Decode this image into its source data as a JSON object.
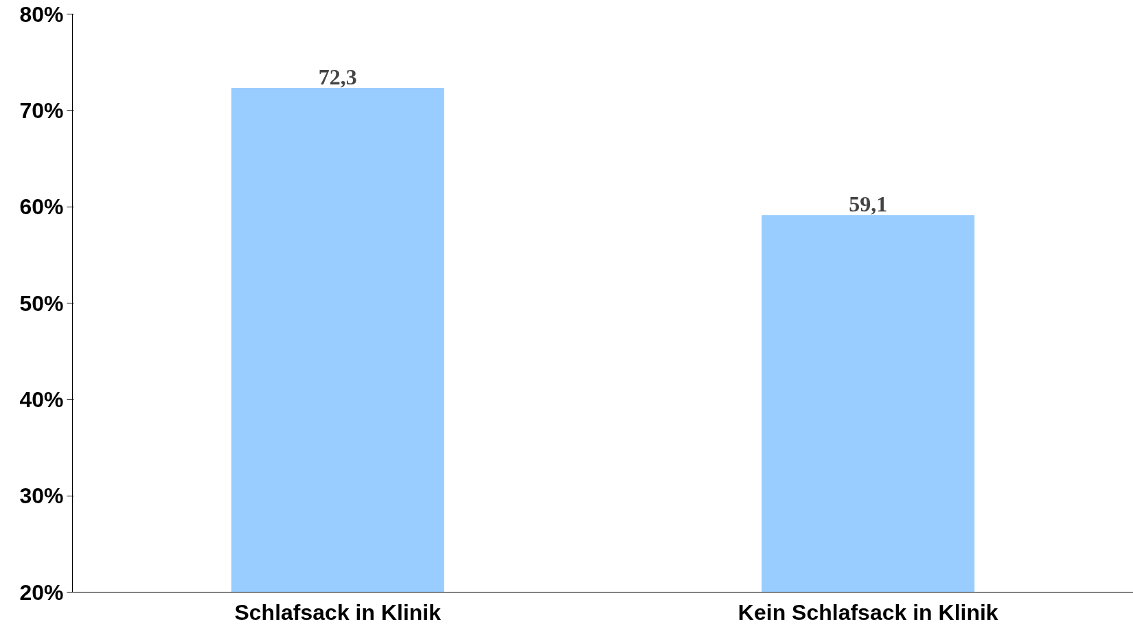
{
  "chart_data": {
    "type": "bar",
    "categories": [
      "Schlafsack in Klinik",
      "Kein Schlafsack in Klinik"
    ],
    "values": [
      72.3,
      59.1
    ],
    "value_labels": [
      "72,3",
      "59,1"
    ],
    "color": "#99ccff",
    "ylim": [
      20,
      80
    ],
    "yticks": [
      {
        "value": 20,
        "label": "20%"
      },
      {
        "value": 30,
        "label": "30%"
      },
      {
        "value": 40,
        "label": "40%"
      },
      {
        "value": 50,
        "label": "50%"
      },
      {
        "value": 60,
        "label": "60%"
      },
      {
        "value": 70,
        "label": "70%"
      },
      {
        "value": 80,
        "label": "80%"
      }
    ]
  }
}
